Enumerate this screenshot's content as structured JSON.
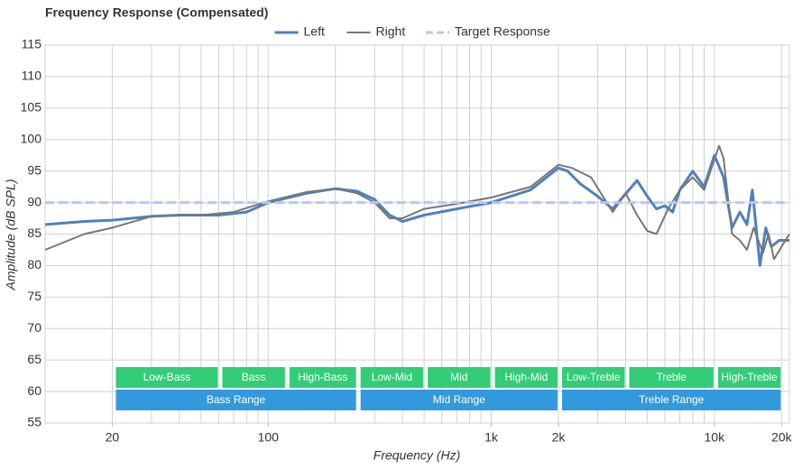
{
  "chart_data": {
    "type": "line",
    "title": "Frequency Response (Compensated)",
    "x_label": "Frequency (Hz)",
    "y_label": "Amplitude (dB SPL)",
    "log_x": true,
    "grid": true,
    "legend": "top",
    "xlim": [
      10,
      21700
    ],
    "ylim": [
      55,
      115
    ],
    "yticks": [
      55,
      60,
      65,
      70,
      75,
      80,
      85,
      90,
      95,
      100,
      105,
      110,
      115
    ],
    "xticks": [
      20,
      100,
      {
        "value": 1000,
        "label": "1k"
      },
      {
        "value": 2000,
        "label": "2k"
      },
      {
        "value": 10000,
        "label": "10k"
      },
      {
        "value": 20000,
        "label": "20k"
      }
    ],
    "xgrid": [
      20,
      30,
      40,
      50,
      60,
      70,
      80,
      90,
      100,
      200,
      300,
      400,
      500,
      600,
      700,
      800,
      900,
      1000,
      2000,
      3000,
      4000,
      5000,
      6000,
      7000,
      8000,
      9000,
      10000,
      20000
    ],
    "series": [
      {
        "name": "Left",
        "color": "#4f81bd",
        "dash": false,
        "width": 3,
        "x": [
          10,
          15,
          20,
          30,
          40,
          60,
          80,
          100,
          150,
          200,
          250,
          300,
          350,
          400,
          500,
          700,
          1000,
          1500,
          2000,
          2200,
          2500,
          3000,
          3500,
          4500,
          5000,
          5500,
          6000,
          6500,
          7000,
          8000,
          9000,
          10000,
          11000,
          12000,
          13000,
          14000,
          14800,
          16000,
          17000,
          18000,
          19500,
          21700
        ],
        "values": [
          86.5,
          87,
          87.2,
          87.8,
          88,
          88,
          88.5,
          90,
          91.5,
          92.2,
          91.8,
          90.5,
          88,
          87,
          88,
          89,
          90,
          92,
          95.5,
          95,
          93,
          91,
          89,
          93.5,
          91,
          89,
          89.5,
          88.5,
          92,
          95,
          92.5,
          97.5,
          94,
          86,
          88.5,
          86.5,
          92,
          80,
          86,
          83,
          84,
          84
        ]
      },
      {
        "name": "Right",
        "color": "#777777",
        "dash": false,
        "width": 2,
        "x": [
          10,
          15,
          20,
          30,
          50,
          70,
          100,
          150,
          200,
          250,
          300,
          350,
          400,
          500,
          700,
          1000,
          1500,
          2000,
          2300,
          2800,
          3500,
          4000,
          4500,
          5000,
          5500,
          6200,
          7000,
          8000,
          9000,
          10500,
          11000,
          12000,
          13000,
          14000,
          15000,
          16500,
          17500,
          18500,
          20000,
          21700
        ],
        "values": [
          82.5,
          85,
          86,
          87.8,
          88,
          88.5,
          90.2,
          91.7,
          92.2,
          91.5,
          90,
          87.5,
          87.5,
          89,
          89.8,
          90.8,
          92.5,
          96,
          95.5,
          94,
          88.5,
          91.5,
          88,
          85.5,
          85,
          89,
          92,
          94,
          92,
          99,
          97,
          85,
          84,
          82.5,
          86,
          82,
          85,
          81,
          83,
          85
        ]
      },
      {
        "name": "Target Response",
        "color": "#b3c6ff",
        "dash": true,
        "width": 3,
        "x": [
          10,
          21700
        ],
        "values": [
          90,
          90
        ]
      }
    ],
    "bands": [
      {
        "label": "Low-Bass",
        "range": [
          20,
          60
        ],
        "color": "#33cc77",
        "row": 0
      },
      {
        "label": "Bass",
        "range": [
          60,
          120
        ],
        "color": "#33cc77",
        "row": 0
      },
      {
        "label": "High-Bass",
        "range": [
          120,
          250
        ],
        "color": "#33cc77",
        "row": 0
      },
      {
        "label": "Low-Mid",
        "range": [
          250,
          500
        ],
        "color": "#33cc77",
        "row": 0
      },
      {
        "label": "Mid",
        "range": [
          500,
          1000
        ],
        "color": "#33cc77",
        "row": 0
      },
      {
        "label": "High-Mid",
        "range": [
          1000,
          2000
        ],
        "color": "#33cc77",
        "row": 0
      },
      {
        "label": "Low-Treble",
        "range": [
          2000,
          4000
        ],
        "color": "#33cc77",
        "row": 0
      },
      {
        "label": "Treble",
        "range": [
          4000,
          10000
        ],
        "color": "#33cc77",
        "row": 0
      },
      {
        "label": "High-Treble",
        "range": [
          10000,
          20000
        ],
        "color": "#33cc77",
        "row": 0
      },
      {
        "label": "Bass Range",
        "range": [
          20,
          250
        ],
        "color": "#3399dd",
        "row": 1
      },
      {
        "label": "Mid Range",
        "range": [
          250,
          2000
        ],
        "color": "#3399dd",
        "row": 1
      },
      {
        "label": "Treble Range",
        "range": [
          2000,
          20000
        ],
        "color": "#3399dd",
        "row": 1
      }
    ]
  }
}
